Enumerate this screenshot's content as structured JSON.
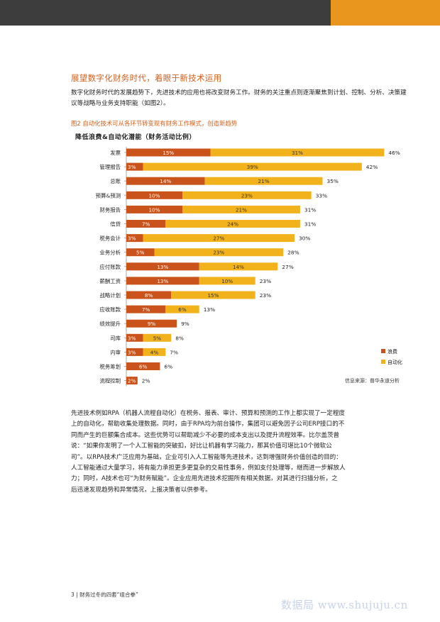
{
  "colors": {
    "waste": "#c9531a",
    "auto": "#f2b21c",
    "accent": "#d2601a"
  },
  "heading": "展望数字化财务时代，着眼于新技术运用",
  "intro": "数字化财务时代的发展趋势下，先进技术的应用也将改变财务工作。财务的关注重点则逐渐聚焦到计划、控制、分析、决策建议等战略与业务支持职能（如图2）。",
  "figure_caption": "图2 自动化技术可从各环节转变现有财务工作模式，创造新趋势",
  "chart_data": {
    "type": "bar",
    "orientation": "horizontal",
    "stacked": true,
    "title": "降低浪费&自动化潜能（财务活动比例）",
    "categories": [
      "发票",
      "管理报告",
      "总账",
      "预算&预测",
      "财务报告",
      "信贷",
      "税务会计",
      "业务分析",
      "应付账款",
      "薪酬工资",
      "战略计划",
      "应收账款",
      "绩效提升",
      "司库",
      "内审",
      "税务筹划",
      "流程控制"
    ],
    "series": [
      {
        "name": "浪费",
        "color": "#c9531a",
        "values": [
          15,
          3,
          14,
          10,
          10,
          7,
          3,
          5,
          13,
          13,
          8,
          7,
          9,
          3,
          3,
          6,
          2
        ],
        "labels": [
          "15%",
          "3%",
          "14%",
          "10%",
          "10%",
          "7%",
          "3%",
          "5%",
          "13%",
          "13%",
          "8%",
          "7%",
          "9%",
          "3%",
          "3%",
          "6%",
          "2%"
        ]
      },
      {
        "name": "自动化",
        "color": "#f2b21c",
        "values": [
          31,
          39,
          21,
          23,
          21,
          24,
          27,
          23,
          14,
          10,
          15,
          6,
          null,
          5,
          4,
          null,
          null
        ],
        "labels": [
          "31%",
          "39%",
          "21%",
          "23%",
          "21%",
          "24%",
          "27%",
          "23%",
          "14%",
          "10%",
          "15%",
          "6%",
          "",
          "5%",
          "4%",
          "",
          ""
        ]
      }
    ],
    "totals": [
      "46%",
      "42%",
      "35%",
      "33%",
      "31%",
      "31%",
      "30%",
      "28%",
      "27%",
      "23%",
      "23%",
      "13%",
      "9%",
      "8%",
      "7%",
      "6%",
      "2%"
    ],
    "total_values": [
      46,
      42,
      35,
      33,
      31,
      31,
      30,
      28,
      27,
      23,
      23,
      13,
      9,
      8,
      7,
      6,
      2
    ],
    "legend_position": "bottom-right",
    "grid": false
  },
  "source": "信息来源：普华永道分析",
  "body_lines": [
    "先进技术例如RPA（机器人流程自动化）在税务、报表、审计、预算和预测的工作上都实现了一定程度",
    "上的自动化，帮助收集处理数据。同时，由于RPA均为前台操作，集团可以避免因子公司ERP接口的不",
    "同而产生的巨额集合成本。这些优势可以帮助减少不必要的成本支出以及提升流程效率。比尔盖茨曾",
    "说：“如果你发明了一个人工智能的突破扣，好比让机器有学习能力，那其价值可堪比10个微软公",
    "司”。以RPA技术广泛应用为基础，企业可引入人工智能等先进技术，达到增强财务价值创造的目的：",
    "人工智能通过大量学习，将有能力承担更多更复杂的交易性事务，例如支付处理等，继而进一步解放人",
    "力；同时，A技术也可“为财务赋能”。企业应用先进技术挖掘所有相关数据，对其进行扫描分析，之",
    "后迅速发现趋势和异常情况，上报决策者以供参考。"
  ],
  "footer": "3 | 财务过冬的四套“组合拳”",
  "watermark": "数据局 www.shujuju.cn"
}
